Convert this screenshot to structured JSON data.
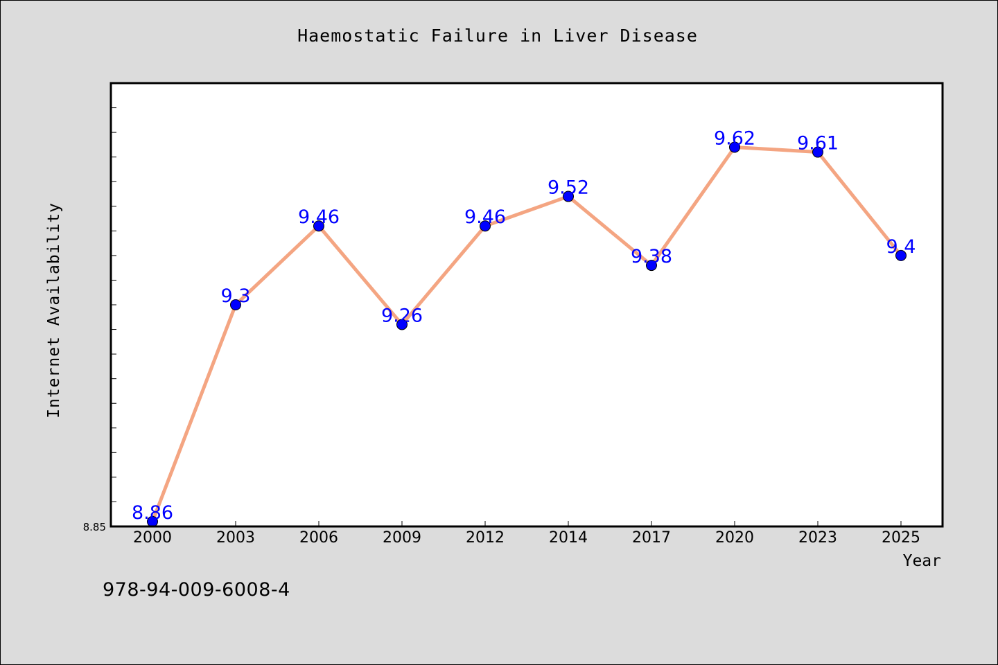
{
  "chart_data": {
    "type": "line",
    "title": "Haemostatic Failure in Liver Disease",
    "xlabel": "Year",
    "ylabel": "Internet Availability",
    "categories": [
      "2000",
      "2003",
      "2006",
      "2009",
      "2012",
      "2014",
      "2017",
      "2020",
      "2023",
      "2025"
    ],
    "series": [
      {
        "values": [
          8.86,
          9.3,
          9.46,
          9.26,
          9.46,
          9.52,
          9.38,
          9.62,
          9.61,
          9.4
        ],
        "labels": [
          "8.86",
          "9.3",
          "9.46",
          "9.26",
          "9.46",
          "9.52",
          "9.38",
          "9.62",
          "9.61",
          "9.4"
        ]
      }
    ],
    "ylim": [
      8.85,
      9.75
    ],
    "y_tick_labels": [
      "8.85"
    ],
    "grid": false,
    "colors": {
      "line": "#f4a582",
      "marker": "#0000ff",
      "data_label": "#0000ff",
      "background": "#dcdcdc",
      "plot_background": "#ffffff"
    }
  },
  "footer": {
    "isbn": "978-94-009-6008-4"
  }
}
